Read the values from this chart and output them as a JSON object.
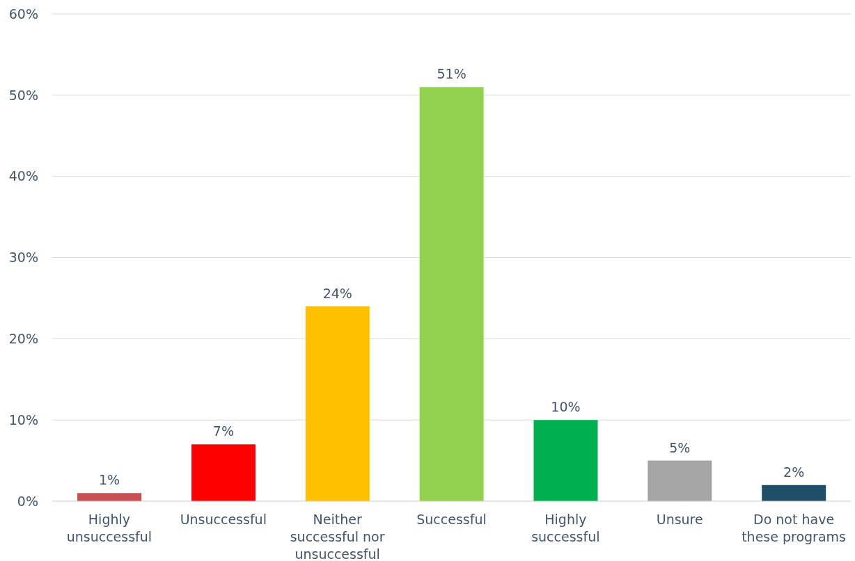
{
  "chart_data": {
    "type": "bar",
    "categories": [
      "Highly unsuccessful",
      "Unsuccessful",
      "Neither successful nor unsuccessful",
      "Successful",
      "Highly successful",
      "Unsure",
      "Do not have these programs"
    ],
    "values": [
      1,
      7,
      24,
      51,
      10,
      5,
      2
    ],
    "colors": [
      "#c84f4f",
      "#ff0000",
      "#ffc000",
      "#92d050",
      "#00b050",
      "#a5a5a5",
      "#1f4e68"
    ],
    "value_labels": [
      "1%",
      "7%",
      "24%",
      "51%",
      "10%",
      "5%",
      "2%"
    ],
    "ylim": [
      0,
      60
    ],
    "yticks": [
      {
        "value": 0,
        "label": "0%"
      },
      {
        "value": 10,
        "label": "10%"
      },
      {
        "value": 20,
        "label": "20%"
      },
      {
        "value": 30,
        "label": "30%"
      },
      {
        "value": 40,
        "label": "40%"
      },
      {
        "value": 50,
        "label": "50%"
      },
      {
        "value": 60,
        "label": "60%"
      }
    ],
    "grid": "y"
  }
}
